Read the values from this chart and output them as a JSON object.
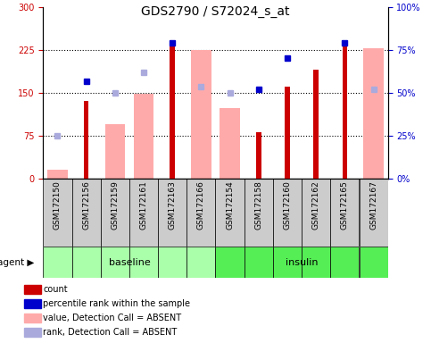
{
  "title": "GDS2790 / S72024_s_at",
  "samples": [
    "GSM172150",
    "GSM172156",
    "GSM172159",
    "GSM172161",
    "GSM172163",
    "GSM172166",
    "GSM172154",
    "GSM172158",
    "GSM172160",
    "GSM172162",
    "GSM172165",
    "GSM172167"
  ],
  "ylim_left": [
    0,
    300
  ],
  "ylim_right": [
    0,
    100
  ],
  "yticks_left": [
    0,
    75,
    150,
    225,
    300
  ],
  "yticks_right": [
    0,
    25,
    50,
    75,
    100
  ],
  "ytick_labels_left": [
    "0",
    "75",
    "150",
    "225",
    "300"
  ],
  "ytick_labels_right": [
    "0%",
    "25%",
    "50%",
    "75%",
    "100%"
  ],
  "hlines": [
    75,
    150,
    225
  ],
  "count_values": [
    null,
    135,
    null,
    null,
    232,
    null,
    null,
    80,
    160,
    190,
    240,
    null
  ],
  "rank_values": [
    null,
    170,
    null,
    null,
    237,
    null,
    null,
    155,
    210,
    null,
    237,
    null
  ],
  "absent_value_values": [
    15,
    null,
    95,
    148,
    null,
    225,
    123,
    null,
    null,
    null,
    null,
    228
  ],
  "absent_rank_values": [
    75,
    null,
    150,
    185,
    null,
    160,
    150,
    null,
    null,
    null,
    null,
    155
  ],
  "count_color": "#cc0000",
  "rank_color": "#0000cc",
  "absent_value_color": "#ffaaaa",
  "absent_rank_color": "#aaaadd",
  "sample_box_color": "#cccccc",
  "baseline_color": "#aaffaa",
  "insulin_color": "#55ee55",
  "baseline_indices": [
    0,
    1,
    2,
    3,
    4,
    5
  ],
  "insulin_indices": [
    6,
    7,
    8,
    9,
    10,
    11
  ]
}
